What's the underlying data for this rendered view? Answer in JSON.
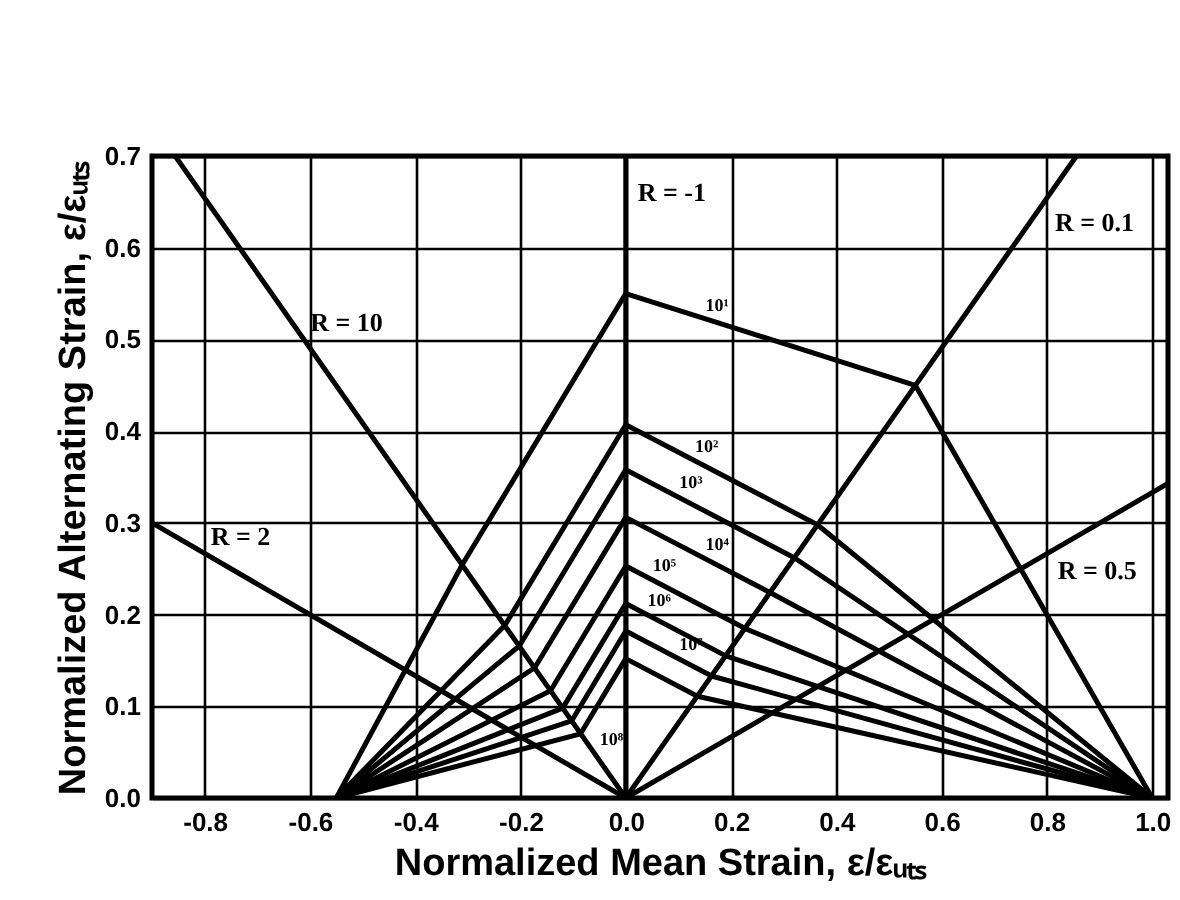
{
  "chart_data": {
    "type": "line",
    "xlabel": "Normalized Mean Strain, ε/εᵤₜₛ",
    "ylabel": "Normalized Alternating Strain, ε/εᵤₜₛ",
    "xlim": [
      -0.9,
      1.03
    ],
    "ylim": [
      0,
      0.7
    ],
    "xticks": [
      -0.8,
      -0.6,
      -0.4,
      -0.2,
      {
        "value": 0,
        "label": "0.0"
      },
      0.2,
      0.4,
      0.6,
      0.8,
      {
        "value": 1,
        "label": "1.0"
      }
    ],
    "yticks": [
      {
        "value": 0,
        "label": "0.0"
      },
      0.1,
      0.2,
      0.3,
      0.4,
      0.5,
      0.6,
      0.7
    ],
    "grid": true,
    "series": [
      {
        "color": "#000000",
        "x": [
          0,
          0
        ],
        "values": [
          0,
          0.7
        ]
      },
      {
        "color": "#000000",
        "x": [
          -0.856,
          0
        ],
        "values": [
          0.7,
          0
        ]
      },
      {
        "color": "#000000",
        "x": [
          -0.9,
          0
        ],
        "values": [
          0.3,
          0
        ]
      },
      {
        "color": "#000000",
        "x": [
          0,
          0.856
        ],
        "values": [
          0,
          0.7
        ]
      },
      {
        "color": "#000000",
        "x": [
          0,
          1.03
        ],
        "values": [
          0,
          0.343
        ]
      },
      {
        "color": "#000000",
        "x": [
          -0.55,
          -0.311,
          0,
          0.55,
          1
        ],
        "values": [
          0,
          0.254,
          0.55,
          0.45,
          0
        ]
      },
      {
        "color": "#000000",
        "x": [
          -0.55,
          -0.23,
          0,
          0.364,
          1
        ],
        "values": [
          0,
          0.188,
          0.407,
          0.298,
          0
        ]
      },
      {
        "color": "#000000",
        "x": [
          -0.55,
          -0.202,
          0,
          0.32,
          1
        ],
        "values": [
          0,
          0.166,
          0.358,
          0.262,
          0
        ]
      },
      {
        "color": "#000000",
        "x": [
          -0.55,
          -0.173,
          0,
          0.274,
          1
        ],
        "values": [
          0,
          0.142,
          0.306,
          0.224,
          0
        ]
      },
      {
        "color": "#000000",
        "x": [
          -0.55,
          -0.143,
          0,
          0.226,
          1
        ],
        "values": [
          0,
          0.117,
          0.253,
          0.185,
          0
        ]
      },
      {
        "color": "#000000",
        "x": [
          -0.55,
          -0.12,
          0,
          0.19,
          1
        ],
        "values": [
          0,
          0.098,
          0.212,
          0.155,
          0
        ]
      },
      {
        "color": "#000000",
        "x": [
          -0.55,
          -0.103,
          0,
          0.163,
          1
        ],
        "values": [
          0,
          0.084,
          0.182,
          0.133,
          0
        ]
      },
      {
        "color": "#000000",
        "x": [
          -0.55,
          -0.086,
          0,
          0.136,
          1
        ],
        "values": [
          0,
          0.07,
          0.152,
          0.111,
          0
        ]
      }
    ],
    "annotations": [
      {
        "text": "R = -1",
        "x": 0,
        "y": 0.66
      },
      {
        "text": "R = 0.1",
        "x": 0.785,
        "y": 0.642
      },
      {
        "text": "R = 0.5",
        "x": 0.79,
        "y": 0.263
      },
      {
        "text": "R = 10",
        "x": -0.611,
        "y": 0.5
      },
      {
        "text": "R = 2",
        "x": -0.8,
        "y": 0.267
      },
      {
        "text": "10¹",
        "x": 0.14,
        "y": 0.5245
      },
      {
        "text": "10²",
        "x": 0.12,
        "y": 0.371
      },
      {
        "text": "10³",
        "x": 0.09,
        "y": 0.331
      },
      {
        "text": "10⁴",
        "x": 0.14,
        "y": 0.264
      },
      {
        "text": "10⁵",
        "x": 0.04,
        "y": 0.241
      },
      {
        "text": "10⁶",
        "x": 0.03,
        "y": 0.203
      },
      {
        "text": "10⁷",
        "x": 0.09,
        "y": 0.155
      },
      {
        "text": "10⁸",
        "x": -0.08,
        "y": 0.0757
      }
    ]
  }
}
